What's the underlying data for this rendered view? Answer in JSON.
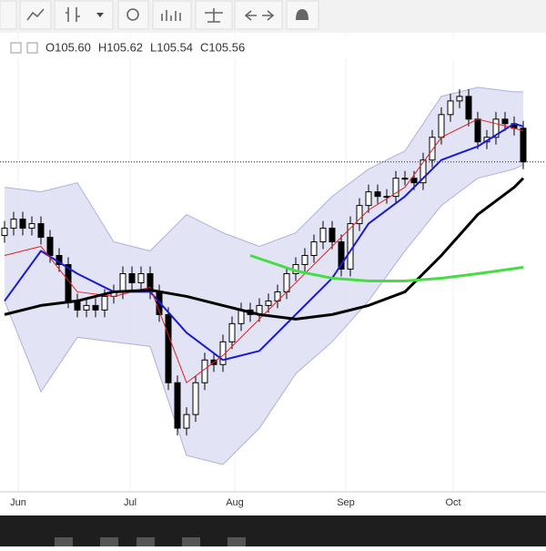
{
  "header": {
    "ohlc": [
      "O105.60",
      "H105.62",
      "L105.54",
      "C105.56"
    ]
  },
  "chart_data": {
    "type": "candlestick",
    "xlim": [
      -0.5,
      59.5
    ],
    "ylim": [
      101.93,
      106.98
    ],
    "xticks": [
      {
        "value": 1.5,
        "label": "Jun"
      },
      {
        "value": 13.8,
        "label": "Jul"
      },
      {
        "value": 25.3,
        "label": "Aug"
      },
      {
        "value": 37.5,
        "label": "Sep"
      },
      {
        "value": 49.3,
        "label": "Oct"
      }
    ],
    "price_line": 105.56,
    "x": [
      0,
      1,
      2,
      3,
      4,
      5,
      6,
      7,
      8,
      9,
      10,
      11,
      12,
      13,
      14,
      15,
      16,
      17,
      18,
      19,
      20,
      21,
      22,
      23,
      24,
      25,
      26,
      27,
      28,
      29,
      30,
      31,
      32,
      33,
      34,
      35,
      36,
      37,
      38,
      39,
      40,
      41,
      42,
      43,
      44,
      45,
      46,
      47,
      48,
      49,
      50,
      51,
      52,
      53,
      54,
      55,
      56,
      57
    ],
    "open": [
      104.75,
      104.83,
      104.93,
      104.83,
      104.88,
      104.73,
      104.53,
      104.43,
      104.03,
      103.93,
      103.98,
      103.93,
      104.08,
      104.13,
      104.33,
      104.23,
      104.33,
      104.13,
      103.88,
      103.13,
      102.63,
      102.78,
      103.13,
      103.38,
      103.33,
      103.58,
      103.78,
      103.93,
      103.88,
      103.98,
      104.03,
      104.13,
      104.33,
      104.43,
      104.53,
      104.68,
      104.83,
      104.68,
      104.38,
      104.88,
      105.08,
      105.23,
      105.18,
      105.18,
      105.38,
      105.38,
      105.33,
      105.58,
      105.83,
      106.08,
      106.23,
      106.28,
      106.03,
      105.78,
      105.83,
      106.03,
      105.98,
      105.93
    ],
    "high": [
      104.91,
      105.01,
      105.01,
      104.96,
      104.96,
      104.81,
      104.61,
      104.51,
      104.11,
      104.06,
      104.06,
      104.16,
      104.21,
      104.41,
      104.41,
      104.41,
      104.41,
      104.21,
      103.96,
      103.21,
      102.86,
      103.21,
      103.46,
      103.46,
      103.66,
      103.86,
      104.01,
      104.01,
      104.06,
      104.11,
      104.21,
      104.41,
      104.51,
      104.61,
      104.76,
      104.91,
      104.91,
      104.76,
      104.96,
      105.16,
      105.31,
      105.31,
      105.26,
      105.46,
      105.46,
      105.46,
      105.66,
      105.91,
      106.16,
      106.31,
      106.36,
      106.36,
      106.11,
      105.91,
      106.11,
      106.11,
      106.06,
      106.01
    ],
    "low": [
      104.67,
      104.75,
      104.75,
      104.75,
      104.65,
      104.45,
      104.35,
      103.95,
      103.85,
      103.85,
      103.85,
      103.85,
      104.0,
      104.05,
      104.15,
      104.15,
      104.05,
      103.8,
      103.05,
      102.55,
      102.55,
      102.7,
      103.05,
      103.25,
      103.25,
      103.5,
      103.7,
      103.8,
      103.8,
      103.9,
      103.95,
      104.05,
      104.25,
      104.35,
      104.45,
      104.6,
      104.6,
      104.3,
      104.3,
      104.8,
      105.0,
      105.1,
      105.1,
      105.1,
      105.3,
      105.25,
      105.25,
      105.5,
      105.75,
      106.0,
      106.15,
      105.95,
      105.7,
      105.7,
      105.75,
      105.9,
      105.85,
      105.48
    ],
    "close": [
      104.83,
      104.93,
      104.83,
      104.88,
      104.73,
      104.53,
      104.43,
      104.03,
      103.93,
      103.98,
      103.93,
      104.08,
      104.13,
      104.33,
      104.23,
      104.33,
      104.13,
      103.88,
      103.13,
      102.63,
      102.78,
      103.13,
      103.38,
      103.33,
      103.58,
      103.78,
      103.93,
      103.88,
      103.98,
      104.03,
      104.13,
      104.33,
      104.43,
      104.53,
      104.68,
      104.83,
      104.68,
      104.38,
      104.88,
      105.08,
      105.23,
      105.18,
      105.18,
      105.38,
      105.38,
      105.33,
      105.58,
      105.83,
      106.08,
      106.23,
      106.28,
      106.03,
      105.78,
      105.83,
      106.03,
      105.98,
      105.93,
      105.56
    ],
    "band": {
      "color": "#dcdcf4",
      "edge_color": "#aeb0dc",
      "x": [
        0,
        4,
        8,
        12,
        16,
        20,
        24,
        28,
        32,
        36,
        40,
        44,
        48,
        52,
        56,
        57
      ],
      "upper": [
        105.28,
        105.23,
        105.33,
        104.68,
        104.58,
        104.98,
        104.78,
        104.63,
        104.78,
        105.18,
        105.48,
        105.68,
        106.28,
        106.38,
        106.33,
        106.33
      ],
      "lower": [
        104.03,
        103.03,
        103.63,
        103.58,
        103.53,
        102.33,
        102.23,
        102.63,
        103.23,
        103.58,
        104.03,
        104.58,
        105.08,
        105.38,
        105.48,
        105.53
      ]
    },
    "lines": [
      {
        "color": "#1a1ad0",
        "width": 2,
        "x": [
          0,
          4,
          8,
          12,
          16,
          20,
          24,
          28,
          32,
          36,
          40,
          44,
          48,
          52,
          56,
          57
        ],
        "values": [
          104.03,
          104.58,
          104.33,
          104.13,
          104.13,
          103.68,
          103.38,
          103.48,
          103.88,
          104.28,
          104.88,
          105.18,
          105.58,
          105.73,
          105.98,
          105.95
        ]
      },
      {
        "color": "#e02020",
        "width": 1,
        "x": [
          0,
          4,
          8,
          12,
          16,
          20,
          24,
          28,
          32,
          36,
          40,
          44,
          48,
          52,
          56,
          57
        ],
        "values": [
          104.53,
          104.63,
          104.13,
          104.08,
          104.18,
          103.13,
          103.43,
          103.83,
          104.23,
          104.63,
          105.03,
          105.28,
          105.83,
          106.03,
          105.93,
          105.9
        ]
      },
      {
        "color": "#000000",
        "width": 3,
        "x": [
          0,
          4,
          8,
          12,
          16,
          20,
          24,
          28,
          32,
          36,
          40,
          44,
          48,
          52,
          56,
          57
        ],
        "values": [
          103.88,
          103.98,
          104.03,
          104.13,
          104.15,
          104.08,
          103.98,
          103.88,
          103.83,
          103.88,
          103.98,
          104.13,
          104.53,
          104.98,
          105.28,
          105.38
        ]
      },
      {
        "color": "#44dd44",
        "width": 3,
        "x": [
          27,
          32,
          36,
          40,
          44,
          48,
          52,
          57
        ],
        "values": [
          104.53,
          104.36,
          104.28,
          104.25,
          104.25,
          104.28,
          104.33,
          104.4
        ]
      }
    ]
  }
}
